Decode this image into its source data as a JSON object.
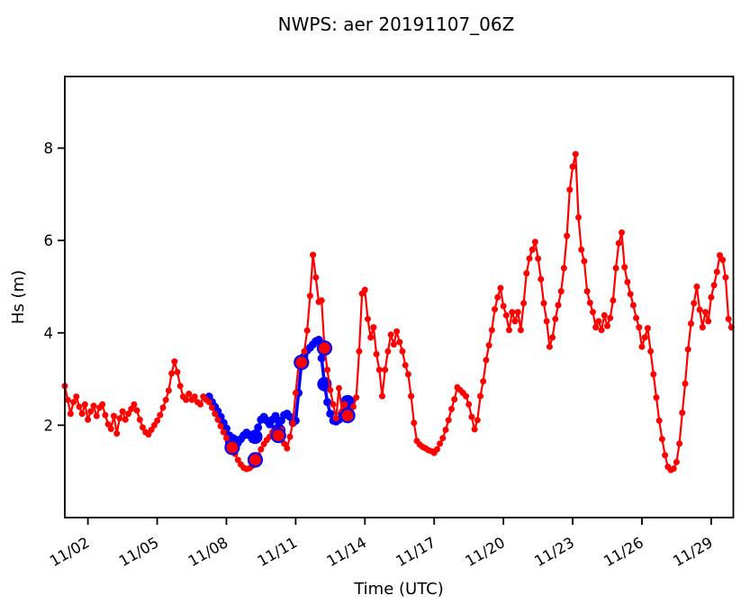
{
  "chart_data": {
    "type": "line",
    "title": "NWPS: aer 20191107_06Z",
    "xlabel": "Time (UTC)",
    "ylabel": "Hs (m)",
    "xlim_days": [
      1.0,
      29.96
    ],
    "ylim": [
      0,
      9.55
    ],
    "grid": false,
    "legend_position": "none",
    "x_tick_days": [
      2,
      5,
      8,
      11,
      14,
      17,
      20,
      23,
      26,
      29
    ],
    "x_tick_labels": [
      "11/02",
      "11/05",
      "11/08",
      "11/11",
      "11/14",
      "11/17",
      "11/20",
      "11/23",
      "11/26",
      "11/29"
    ],
    "y_ticks": [
      2,
      4,
      6,
      8
    ],
    "y_tick_labels": [
      "2",
      "4",
      "6",
      "8"
    ],
    "series": [
      {
        "name": "observations",
        "color": "#ff0000",
        "line_width": 2.2,
        "marker_radius": 3.5,
        "t_start": 1.0,
        "t_step": 0.125,
        "values": [
          2.85,
          2.55,
          2.25,
          2.5,
          2.62,
          2.4,
          2.25,
          2.45,
          2.12,
          2.3,
          2.42,
          2.2,
          2.38,
          2.45,
          2.22,
          2.02,
          1.92,
          2.2,
          1.82,
          2.15,
          2.3,
          2.12,
          2.25,
          2.35,
          2.45,
          2.32,
          2.12,
          1.95,
          1.85,
          1.8,
          1.9,
          2.0,
          2.1,
          2.22,
          2.38,
          2.55,
          2.75,
          3.12,
          3.38,
          3.15,
          2.85,
          2.62,
          2.55,
          2.68,
          2.55,
          2.62,
          2.5,
          2.45,
          2.62,
          2.55,
          2.5,
          2.38,
          2.25,
          2.12,
          1.98,
          1.85,
          1.72,
          1.6,
          1.52,
          1.38,
          1.25,
          1.15,
          1.08,
          1.05,
          1.07,
          1.12,
          1.25,
          1.35,
          1.48,
          1.59,
          1.68,
          1.75,
          1.85,
          1.88,
          1.78,
          1.9,
          1.6,
          1.5,
          1.75,
          2.04,
          2.7,
          3.3,
          3.36,
          3.6,
          4.05,
          4.8,
          5.69,
          5.2,
          4.67,
          4.7,
          3.67,
          3.2,
          2.76,
          2.45,
          2.15,
          2.8,
          2.3,
          2.45,
          2.21,
          2.3,
          2.4,
          2.6,
          3.6,
          4.85,
          4.93,
          4.3,
          3.9,
          4.12,
          3.54,
          3.2,
          2.63,
          3.2,
          3.6,
          3.96,
          3.75,
          4.03,
          3.8,
          3.6,
          3.3,
          3.1,
          2.63,
          2.05,
          1.66,
          1.58,
          1.53,
          1.5,
          1.46,
          1.44,
          1.4,
          1.48,
          1.6,
          1.72,
          1.9,
          2.11,
          2.35,
          2.56,
          2.82,
          2.76,
          2.7,
          2.63,
          2.45,
          2.18,
          1.91,
          2.11,
          2.63,
          2.95,
          3.41,
          3.73,
          4.06,
          4.51,
          4.77,
          4.97,
          4.58,
          4.38,
          4.06,
          4.45,
          4.25,
          4.45,
          4.06,
          4.64,
          5.29,
          5.61,
          5.8,
          5.97,
          5.61,
          5.16,
          4.64,
          4.25,
          3.7,
          3.9,
          4.3,
          4.6,
          4.9,
          5.4,
          6.1,
          7.1,
          7.6,
          7.87,
          6.5,
          5.8,
          5.55,
          4.9,
          4.65,
          4.45,
          4.12,
          4.25,
          4.06,
          4.38,
          4.15,
          4.32,
          4.7,
          5.4,
          5.94,
          6.17,
          5.42,
          5.1,
          4.84,
          4.6,
          4.32,
          4.12,
          3.7,
          3.9,
          4.1,
          3.6,
          3.1,
          2.6,
          2.1,
          1.7,
          1.35,
          1.1,
          1.03,
          1.06,
          1.2,
          1.6,
          2.27,
          2.9,
          3.64,
          4.2,
          4.64,
          5.0,
          4.5,
          4.12,
          4.45,
          4.25,
          4.77,
          5.03,
          5.32,
          5.68,
          5.58,
          5.2,
          4.3,
          4.12
        ]
      },
      {
        "name": "model-forecast",
        "color": "#0000ff",
        "line_width": 3.5,
        "marker_radius": 4.5,
        "t_start": 7.25,
        "t_step": 0.125,
        "values": [
          2.62,
          2.5,
          2.4,
          2.3,
          2.18,
          2.05,
          1.93,
          1.78,
          1.65,
          1.58,
          1.62,
          1.7,
          1.78,
          1.84,
          1.78,
          1.7,
          1.75,
          1.95,
          2.12,
          2.18,
          2.1,
          2.02,
          2.12,
          2.2,
          1.88,
          2.1,
          2.22,
          2.25,
          2.18,
          2.05,
          2.1,
          2.7,
          3.35,
          3.5,
          3.62,
          3.68,
          3.75,
          3.82,
          3.85,
          3.45,
          2.89,
          2.5,
          2.25,
          2.1,
          2.08,
          2.12,
          2.25,
          2.4,
          2.5
        ]
      }
    ],
    "daily_markers": {
      "forecast": {
        "color": "#0000ff",
        "radius": 8,
        "points": [
          [
            8.25,
            1.65
          ],
          [
            9.25,
            1.75
          ],
          [
            10.25,
            1.88
          ],
          [
            11.25,
            3.35
          ],
          [
            12.25,
            2.89
          ],
          [
            13.25,
            2.5
          ]
        ]
      },
      "observations": {
        "fill": "#ff0000",
        "edge": "#0000ff",
        "edge_width": 2.2,
        "radius": 7.5,
        "points": [
          [
            8.25,
            1.52
          ],
          [
            9.25,
            1.25
          ],
          [
            10.25,
            1.78
          ],
          [
            11.25,
            3.36
          ],
          [
            12.25,
            3.67
          ],
          [
            13.25,
            2.21
          ]
        ]
      }
    },
    "colors": {
      "observations": "#ff0000",
      "forecast": "#0000ff",
      "axes": "#000000",
      "background": "#ffffff"
    }
  }
}
